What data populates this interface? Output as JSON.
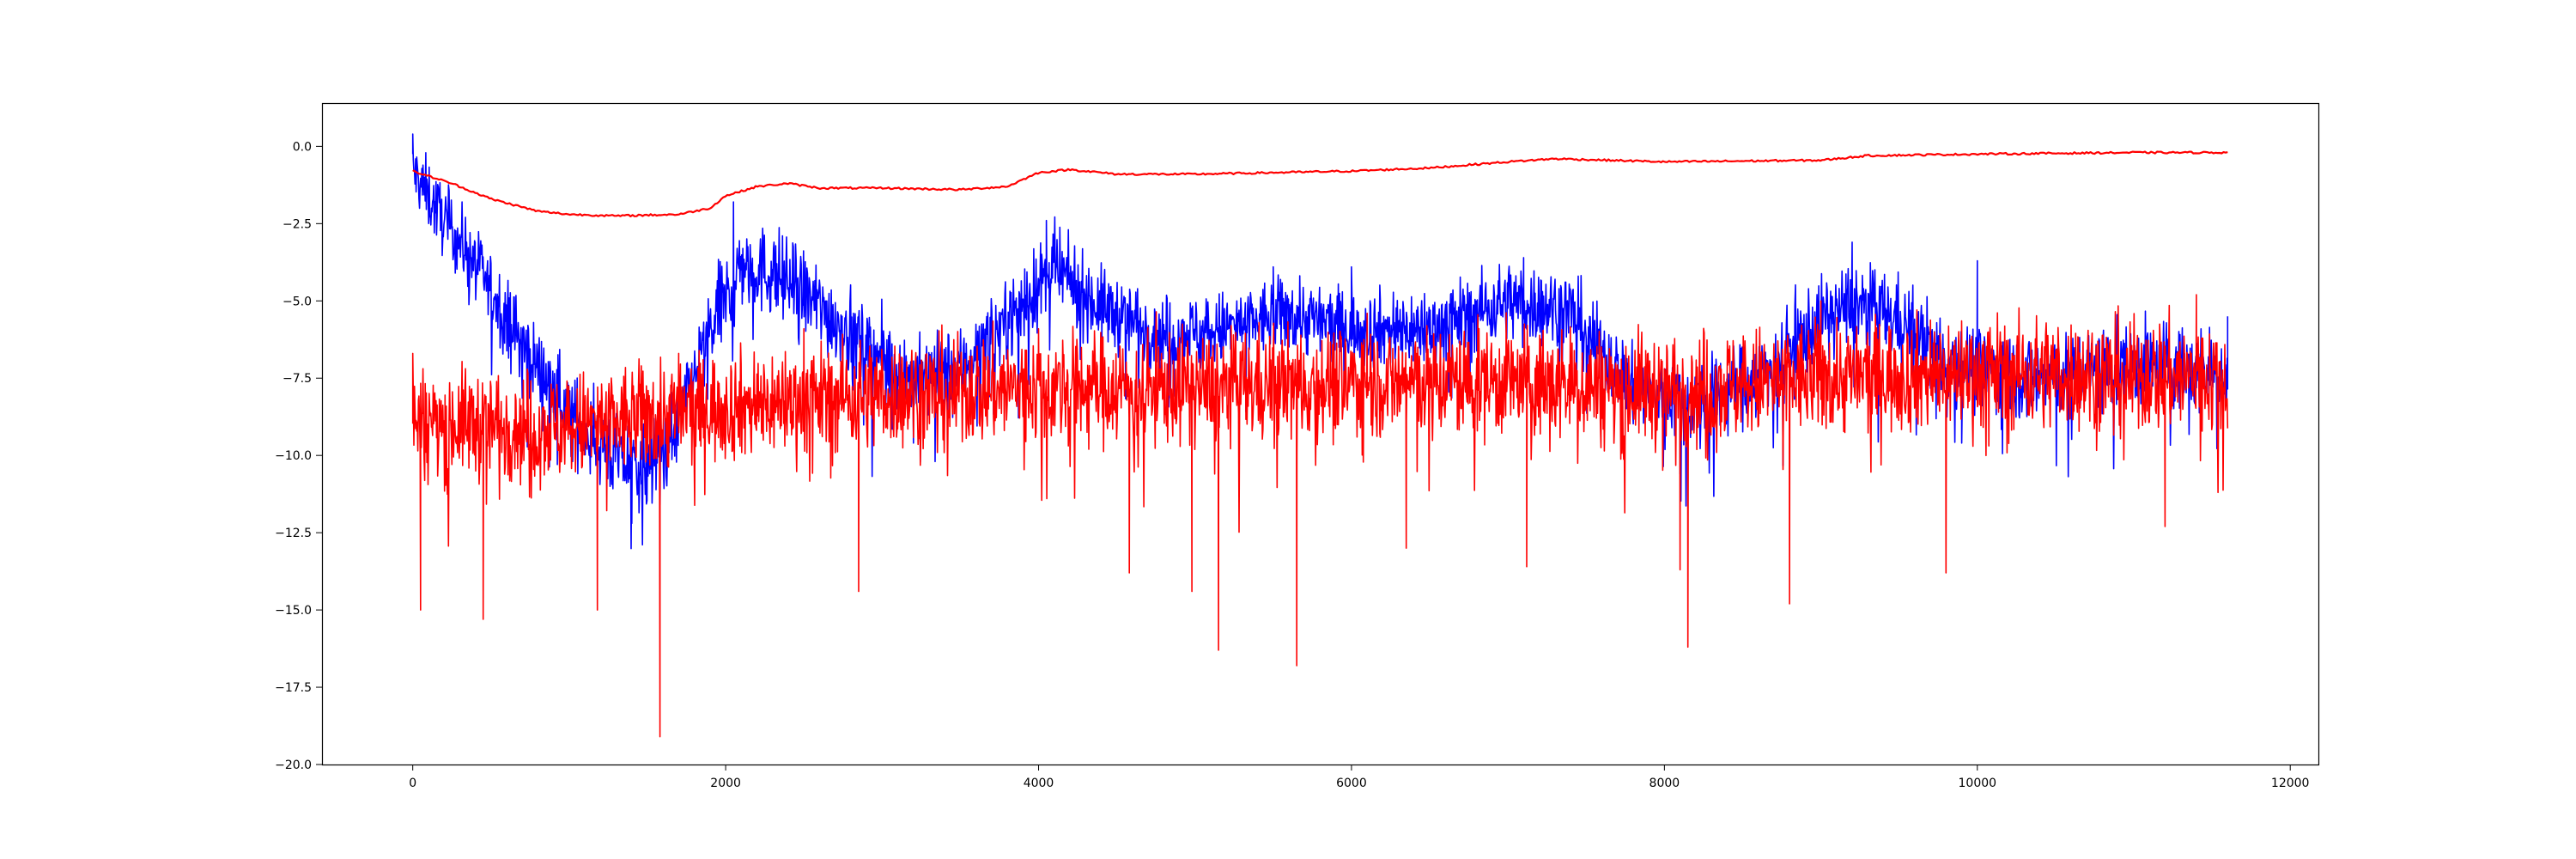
{
  "chart_data": {
    "type": "line",
    "title": "",
    "xlabel": "",
    "ylabel": "",
    "xlim": [
      -580,
      12180
    ],
    "ylim": [
      -20.0,
      1.4
    ],
    "x_ticks": [
      0,
      2000,
      4000,
      6000,
      8000,
      10000,
      12000
    ],
    "x_tick_labels": [
      "0",
      "2000",
      "4000",
      "6000",
      "8000",
      "10000",
      "12000"
    ],
    "y_ticks": [
      0.0,
      -2.5,
      -5.0,
      -7.5,
      -10.0,
      -12.5,
      -15.0,
      -17.5,
      -20.0
    ],
    "y_tick_labels": [
      "0.0",
      "−2.5",
      "−5.0",
      "−7.5",
      "−10.0",
      "−12.5",
      "−15.0",
      "−17.5",
      "−20.0"
    ],
    "grid": false,
    "legend": false,
    "x_range": [
      0,
      11600
    ],
    "series": [
      {
        "color": "#0000ff",
        "style": "noisy",
        "baseline": [
          [
            0,
            -0.8
          ],
          [
            150,
            -2.0
          ],
          [
            400,
            -3.8
          ],
          [
            700,
            -6.4
          ],
          [
            1000,
            -8.6
          ],
          [
            1300,
            -10.1
          ],
          [
            1500,
            -10.4
          ],
          [
            1700,
            -8.9
          ],
          [
            1900,
            -6.0
          ],
          [
            2100,
            -3.8
          ],
          [
            2350,
            -4.2
          ],
          [
            2600,
            -5.2
          ],
          [
            2900,
            -6.5
          ],
          [
            3200,
            -7.6
          ],
          [
            3500,
            -7.2
          ],
          [
            3800,
            -5.6
          ],
          [
            4100,
            -4.0
          ],
          [
            4400,
            -5.2
          ],
          [
            4800,
            -6.1
          ],
          [
            5200,
            -5.9
          ],
          [
            5600,
            -5.4
          ],
          [
            6000,
            -5.9
          ],
          [
            6500,
            -5.9
          ],
          [
            7000,
            -5.0
          ],
          [
            7400,
            -5.3
          ],
          [
            7800,
            -7.9
          ],
          [
            8200,
            -8.3
          ],
          [
            8600,
            -7.5
          ],
          [
            8900,
            -6.0
          ],
          [
            9200,
            -5.0
          ],
          [
            9500,
            -5.6
          ],
          [
            9800,
            -6.9
          ],
          [
            10200,
            -7.4
          ],
          [
            10600,
            -7.4
          ],
          [
            11000,
            -7.0
          ],
          [
            11600,
            -7.4
          ]
        ],
        "amplitude": [
          [
            0,
            1.0
          ],
          [
            1500,
            1.3
          ],
          [
            2500,
            1.3
          ],
          [
            5000,
            1.1
          ],
          [
            8000,
            1.2
          ],
          [
            11600,
            1.3
          ]
        ],
        "peaks": [
          [
            0,
            0.4
          ],
          [
            2050,
            -1.8
          ],
          [
            4050,
            -2.4
          ],
          [
            5500,
            -3.9
          ],
          [
            6000,
            -3.9
          ],
          [
            7100,
            -3.6
          ],
          [
            9200,
            -3.1
          ],
          [
            10000,
            -3.7
          ],
          [
            11600,
            -5.5
          ]
        ],
        "troughs": [
          [
            1400,
            -12.2
          ],
          [
            3200,
            -9.6
          ],
          [
            8100,
            -10.6
          ],
          [
            9900,
            -9.6
          ]
        ]
      },
      {
        "color": "#ff0000",
        "style": "noisy",
        "baseline": [
          [
            0,
            -8.9
          ],
          [
            1000,
            -9.1
          ],
          [
            2000,
            -8.4
          ],
          [
            3000,
            -8.0
          ],
          [
            4000,
            -7.8
          ],
          [
            5000,
            -7.8
          ],
          [
            6000,
            -7.6
          ],
          [
            7000,
            -7.6
          ],
          [
            8000,
            -7.9
          ],
          [
            9000,
            -7.5
          ],
          [
            10000,
            -7.3
          ],
          [
            11000,
            -7.4
          ],
          [
            11600,
            -7.5
          ]
        ],
        "amplitude": [
          [
            0,
            1.6
          ],
          [
            11600,
            1.7
          ]
        ],
        "peaks": [
          [
            0,
            -6.7
          ],
          [
            1700,
            -6.7
          ],
          [
            2500,
            -5.9
          ],
          [
            4000,
            -5.9
          ],
          [
            6100,
            -5.4
          ],
          [
            9000,
            -5.0
          ],
          [
            11400,
            -4.8
          ]
        ],
        "troughs": [
          [
            50,
            -15.0
          ],
          [
            450,
            -15.3
          ],
          [
            1180,
            -15.0
          ],
          [
            1580,
            -19.1
          ],
          [
            2850,
            -14.4
          ],
          [
            4580,
            -13.8
          ],
          [
            4980,
            -14.4
          ],
          [
            5150,
            -16.3
          ],
          [
            5650,
            -16.8
          ],
          [
            6350,
            -13.0
          ],
          [
            7120,
            -13.6
          ],
          [
            8100,
            -13.7
          ],
          [
            8150,
            -16.2
          ],
          [
            8800,
            -14.8
          ],
          [
            9800,
            -13.8
          ],
          [
            11200,
            -12.3
          ]
        ]
      },
      {
        "color": "#ff0000",
        "style": "smooth",
        "values": [
          [
            0,
            -0.8
          ],
          [
            250,
            -1.2
          ],
          [
            500,
            -1.7
          ],
          [
            800,
            -2.1
          ],
          [
            1000,
            -2.2
          ],
          [
            1300,
            -2.25
          ],
          [
            1700,
            -2.2
          ],
          [
            1900,
            -2.0
          ],
          [
            2000,
            -1.6
          ],
          [
            2200,
            -1.3
          ],
          [
            2400,
            -1.2
          ],
          [
            2600,
            -1.35
          ],
          [
            3000,
            -1.35
          ],
          [
            3500,
            -1.4
          ],
          [
            3800,
            -1.3
          ],
          [
            4000,
            -0.85
          ],
          [
            4200,
            -0.75
          ],
          [
            4500,
            -0.9
          ],
          [
            5000,
            -0.9
          ],
          [
            6000,
            -0.8
          ],
          [
            6500,
            -0.7
          ],
          [
            7000,
            -0.5
          ],
          [
            7300,
            -0.4
          ],
          [
            8000,
            -0.5
          ],
          [
            9000,
            -0.45
          ],
          [
            9300,
            -0.3
          ],
          [
            10000,
            -0.25
          ],
          [
            11000,
            -0.2
          ],
          [
            11600,
            -0.2
          ]
        ]
      }
    ]
  }
}
